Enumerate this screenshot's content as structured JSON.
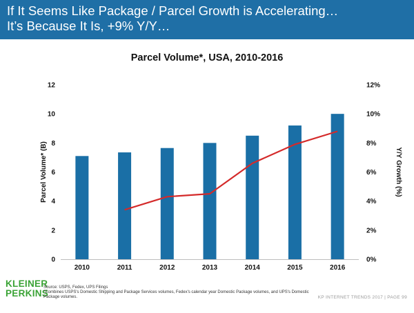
{
  "header": {
    "line1": "If It Seems Like Package / Parcel Growth is Accelerating…",
    "line2": "It’s Because It Is, +9% Y/Y…"
  },
  "colors": {
    "header_bg": "#1f6fa6",
    "bar": "#1a6fa6",
    "line": "#d42a2a",
    "logo": "#3aa335"
  },
  "chart_data": {
    "type": "bar",
    "title": "Parcel Volume*, USA, 2010-2016",
    "categories": [
      "2010",
      "2011",
      "2012",
      "2013",
      "2014",
      "2015",
      "2016"
    ],
    "series": [
      {
        "name": "Parcel Volume* (B)",
        "type": "bar",
        "axis": "left",
        "values": [
          7.1,
          7.35,
          7.65,
          8.0,
          8.5,
          9.2,
          10.0
        ]
      },
      {
        "name": "Y/Y Growth (%)",
        "type": "line",
        "axis": "right",
        "values": [
          null,
          3.4,
          4.3,
          4.5,
          6.6,
          7.9,
          8.8
        ]
      }
    ],
    "ylabel": "Parcel Volume* (B)",
    "y2label": "Y/Y Growth (%)",
    "ylim": [
      0,
      12
    ],
    "y2lim": [
      0,
      12
    ],
    "yticks": [
      "0",
      "2",
      "4",
      "6",
      "8",
      "10",
      "12"
    ],
    "y2ticks": [
      "0%",
      "2%",
      "4%",
      "6%",
      "8%",
      "10%",
      "12%"
    ],
    "grid": false
  },
  "footer": {
    "logo_line1": "KLEINER",
    "logo_line2": "PERKINS",
    "source": "Source: USPS, Fedex, UPS Filings",
    "note": "*Combines USPS's Domestic Shipping and Package Services volumes, Fedex's calendar year Domestic Package volumes, and UPS's Domestic Package volumes.",
    "right": "KP INTERNET TRENDS 2017 | PAGE 99"
  }
}
